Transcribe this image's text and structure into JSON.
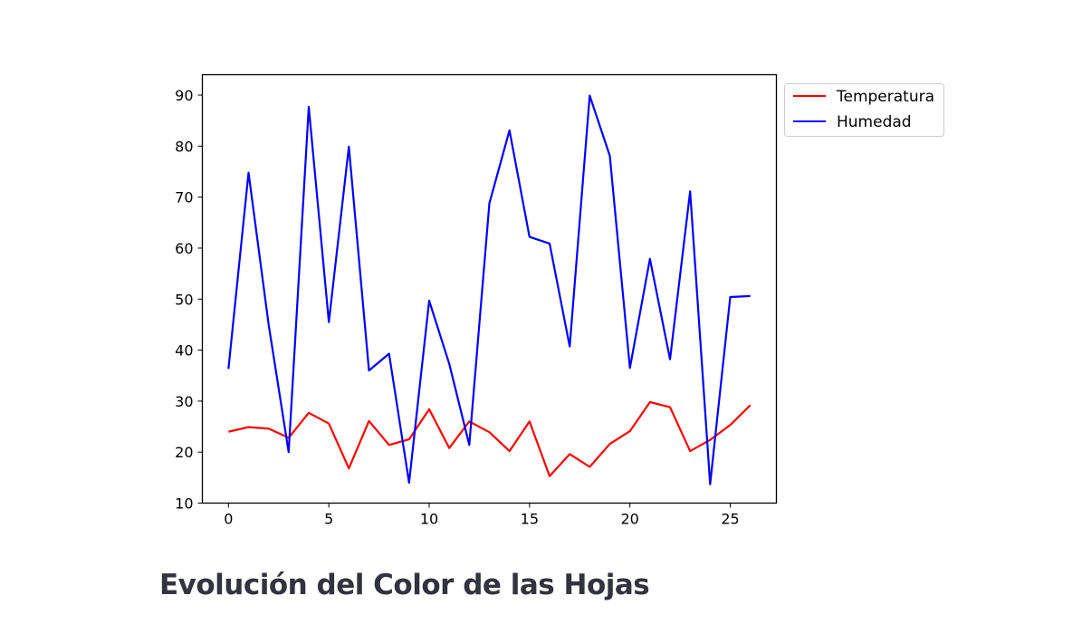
{
  "section_heading": "Evolución del Color de las Hojas",
  "chart_data": {
    "type": "line",
    "title": "",
    "xlabel": "",
    "ylabel": "",
    "xlim": [
      -1.3,
      27.3
    ],
    "ylim": [
      10,
      94
    ],
    "xticks": [
      0,
      5,
      10,
      15,
      20,
      25
    ],
    "yticks": [
      10,
      20,
      30,
      40,
      50,
      60,
      70,
      80,
      90
    ],
    "grid": false,
    "legend_position": "outside-top-right",
    "x": [
      0,
      1,
      2,
      3,
      4,
      5,
      6,
      7,
      8,
      9,
      10,
      11,
      12,
      13,
      14,
      15,
      16,
      17,
      18,
      19,
      20,
      21,
      22,
      23,
      24,
      25,
      26
    ],
    "series": [
      {
        "name": "Temperatura",
        "color": "#ff0000",
        "values": [
          24.0,
          24.9,
          24.6,
          22.8,
          27.7,
          25.6,
          16.8,
          26.1,
          21.4,
          22.5,
          28.4,
          20.8,
          26.0,
          23.9,
          20.2,
          26.0,
          15.3,
          19.6,
          17.1,
          21.6,
          24.1,
          29.8,
          28.8,
          20.2,
          22.4,
          25.3,
          29.2
        ]
      },
      {
        "name": "Humedad",
        "color": "#0000ff",
        "values": [
          36.3,
          74.8,
          45.0,
          20.0,
          87.7,
          45.5,
          79.9,
          36.0,
          39.3,
          14.0,
          49.7,
          37.3,
          21.4,
          68.8,
          83.1,
          62.2,
          60.9,
          40.7,
          89.9,
          78.1,
          36.5,
          57.9,
          38.2,
          71.1,
          13.7,
          50.4,
          50.6
        ]
      }
    ]
  }
}
